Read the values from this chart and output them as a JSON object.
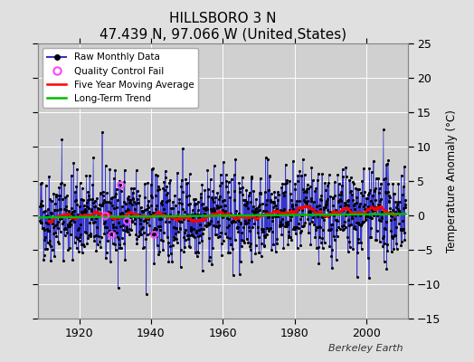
{
  "title": "HILLSBORO 3 N",
  "subtitle": "47.439 N, 97.066 W (United States)",
  "ylabel": "Temperature Anomaly (°C)",
  "credit": "Berkeley Earth",
  "year_start": 1909,
  "year_end": 2011,
  "ylim": [
    -15,
    25
  ],
  "yticks": [
    -15,
    -10,
    -5,
    0,
    5,
    10,
    15,
    20,
    25
  ],
  "xticks": [
    1920,
    1940,
    1960,
    1980,
    2000
  ],
  "bg_color": "#e0e0e0",
  "plot_bg_color": "#d0d0d0",
  "grid_color": "#ffffff",
  "raw_line_color": "#3333cc",
  "raw_marker_color": "#000000",
  "qc_fail_color": "#ff44ff",
  "moving_avg_color": "#ff0000",
  "trend_color": "#00bb00",
  "seed": 42,
  "n_months": 1224,
  "trend_slope": 0.005,
  "trend_intercept": -0.3
}
